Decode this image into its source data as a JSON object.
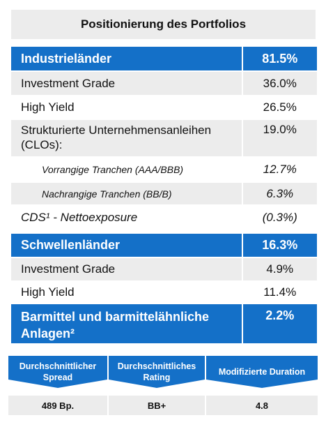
{
  "title": "Positionierung  des Portfolios",
  "rows": [
    {
      "label": "Industrieländer",
      "value": "81.5%"
    },
    {
      "label": "Investment Grade",
      "value": "36.0%"
    },
    {
      "label": "High Yield",
      "value": "26.5%"
    },
    {
      "label": "Strukturierte Unternehmensanleihen (CLOs):",
      "value": "19.0%"
    },
    {
      "label": "Vorrangige Tranchen (AAA/BBB)",
      "value": "12.7%"
    },
    {
      "label": "Nachrangige Tranchen (BB/B)",
      "value": "6.3%"
    },
    {
      "label": "CDS¹ - Nettoexposure",
      "value": "(0.3%)"
    },
    {
      "label": "Schwellenländer",
      "value": "16.3%"
    },
    {
      "label": "Investment Grade",
      "value": "4.9%"
    },
    {
      "label": "High Yield",
      "value": "11.4%"
    },
    {
      "label": "Barmittel und barmittelähnliche Anlagen²",
      "value": "2.2%"
    }
  ],
  "stats": [
    {
      "label": "Durchschnittlicher Spread",
      "value": "489 Bp."
    },
    {
      "label": "Durchschnittliches Rating",
      "value": "BB+"
    },
    {
      "label": "Modifizierte Duration",
      "value": "4.8"
    }
  ],
  "colors": {
    "accent": "#1470c8",
    "band": "#ececec"
  }
}
